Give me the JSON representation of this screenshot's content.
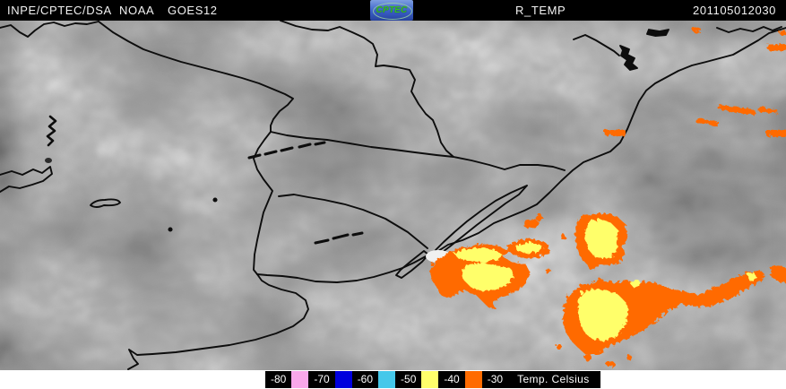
{
  "header": {
    "agency": "INPE/CPTEC/DSA",
    "network": "NOAA",
    "satellite": "GOES12",
    "product": "R_TEMP",
    "timestamp": "201105012030",
    "logo_text": "CPTEC"
  },
  "legend": {
    "title": "Temp. Celsius",
    "labels": [
      "-80",
      "-70",
      "-60",
      "-50",
      "-40",
      "-30"
    ],
    "swatch_colors": [
      "#f9a7ea",
      "#0000dd",
      "#45c8ea",
      "#ffff6b",
      "#ff6b00"
    ]
  },
  "colors": {
    "overlay_orange": "#ff6b00",
    "overlay_yellow": "#ffff6b",
    "map_line": "#0d0d0d",
    "bar_bg": "#000000",
    "bar_text": "#f2f2f2",
    "strip_bg": "#ffffff"
  }
}
